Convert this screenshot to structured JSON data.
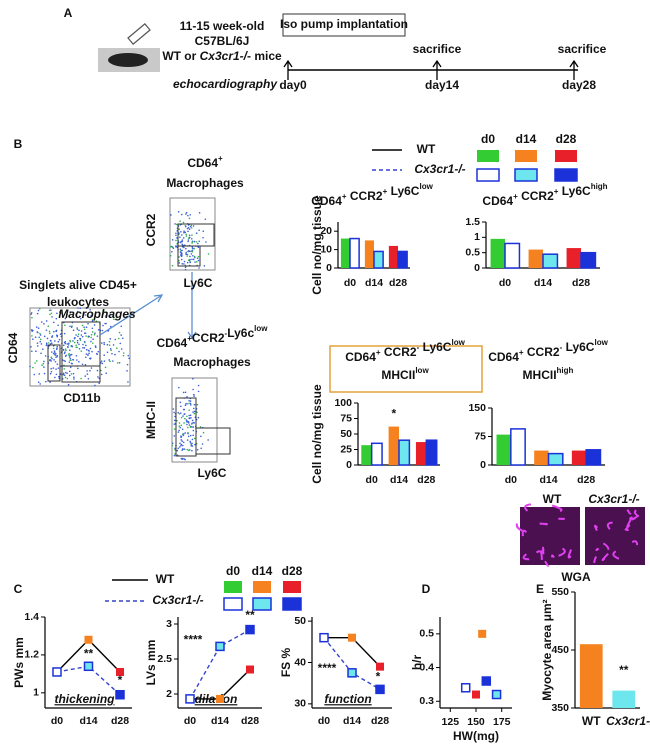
{
  "panel_labels": [
    "A",
    "B",
    "C",
    "D",
    "E"
  ],
  "timeline": {
    "mice": [
      "11-15 week-old",
      "C57BL/6J"
    ],
    "genotype_line": [
      "WT or ",
      "Cx3cr1-/-",
      " mice"
    ],
    "echo": "echocardiography",
    "pump": "Iso pump implantation",
    "sacrifice": [
      "sacrifice",
      "sacrifice"
    ],
    "days": [
      "day0",
      "day14",
      "day28"
    ]
  },
  "legend": {
    "wt": "WT",
    "ko": "Cx3cr1-/-",
    "timepoints": [
      "d0",
      "d14",
      "d28"
    ],
    "wt_colors": [
      "#33cc33",
      "#f5821f",
      "#e8202a"
    ],
    "ko_colors": [
      "#ffffff",
      "#6ee6ee",
      "#1a32d8"
    ],
    "ko_stroke": "#1a32d8",
    "wt_line": "#000000",
    "ko_line": "#3344cc"
  },
  "gating": {
    "leukocytes": [
      [
        [
          "Singlets alive CD45+"
        ]
      ],
      [
        [
          "leukocytes"
        ]
      ]
    ],
    "macrophages": [
      [
        [
          "CD64",
          "+"
        ]
      ],
      [
        [
          "Macrophages"
        ]
      ]
    ],
    "ly6c_low": [
      [
        [
          "CD64",
          "+"
        ],
        [
          "CCR2",
          "-"
        ],
        [
          "Ly6c",
          "low"
        ]
      ],
      [
        [
          "Macrophages"
        ]
      ]
    ],
    "gate_label": "Macrophages",
    "axes": [
      "CD64",
      "CD11b",
      "CCR2",
      "Ly6C",
      "MHC-II",
      "Ly6C"
    ]
  },
  "panel_e": {
    "images": [
      "WT",
      "Cx3cr1-/-"
    ],
    "stain": "WGA"
  },
  "chart_data": [
    {
      "type": "grouped_bar",
      "title": [
        [
          [
            "CD64",
            "+"
          ],
          [
            " CCR2",
            "+"
          ],
          [
            " Ly6C",
            "low"
          ]
        ]
      ],
      "ylabel": "Cell no/mg tissue",
      "categories": [
        "d0",
        "d14",
        "d28"
      ],
      "series": [
        {
          "values": [
            16,
            15,
            12
          ]
        },
        {
          "values": [
            16,
            9,
            9
          ]
        }
      ],
      "ylim": [
        0,
        25
      ],
      "yticks": [
        0,
        10,
        20
      ],
      "annotations": []
    },
    {
      "type": "grouped_bar",
      "title": [
        [
          [
            "CD64",
            "+"
          ],
          [
            " CCR2",
            "+"
          ],
          [
            " Ly6C",
            "high"
          ]
        ]
      ],
      "categories": [
        "d0",
        "d14",
        "d28"
      ],
      "series": [
        {
          "values": [
            0.95,
            0.6,
            0.65
          ]
        },
        {
          "values": [
            0.8,
            0.45,
            0.5
          ]
        }
      ],
      "ylim": [
        0,
        1.5
      ],
      "yticks": [
        0,
        0.5,
        1,
        1.5
      ],
      "annotations": []
    },
    {
      "type": "grouped_bar",
      "title": [
        [
          [
            "CD64",
            "+"
          ],
          [
            " CCR2",
            "-"
          ],
          [
            " Ly6C",
            "low"
          ]
        ],
        [
          [
            "MHCII",
            "low"
          ]
        ]
      ],
      "ylabel": "Cell no/mg tissue",
      "categories": [
        "d0",
        "d14",
        "d28"
      ],
      "series": [
        {
          "values": [
            32,
            62,
            37
          ]
        },
        {
          "values": [
            35,
            40,
            40
          ]
        }
      ],
      "ylim": [
        0,
        100
      ],
      "yticks": [
        0,
        25,
        50,
        75,
        100
      ],
      "annotations": [
        "*"
      ]
    },
    {
      "type": "grouped_bar",
      "title": [
        [
          [
            "CD64",
            "+"
          ],
          [
            " CCR2",
            "-"
          ],
          [
            " Ly6C",
            "low"
          ]
        ],
        [
          [
            "MHCII",
            "high"
          ]
        ]
      ],
      "categories": [
        "d0",
        "d14",
        "d28"
      ],
      "series": [
        {
          "values": [
            80,
            38,
            38
          ]
        },
        {
          "values": [
            95,
            30,
            40
          ]
        }
      ],
      "ylim": [
        0,
        150
      ],
      "yticks": [
        0,
        75,
        150
      ],
      "annotations": []
    },
    {
      "type": "line",
      "ylabel": "PWs mm",
      "caption": "thickening",
      "categories": [
        "d0",
        "d14",
        "d28"
      ],
      "series": [
        {
          "values": [
            1.11,
            1.28,
            1.11
          ]
        },
        {
          "values": [
            1.11,
            1.14,
            0.99
          ]
        }
      ],
      "ylim": [
        0.92,
        1.4
      ],
      "yticks": [
        1,
        1.2,
        1.4
      ],
      "annotations": [
        "**",
        "*"
      ]
    },
    {
      "type": "line",
      "ylabel": "LVs mm",
      "caption": "dilation",
      "categories": [
        "d0",
        "d14",
        "d28"
      ],
      "series": [
        {
          "values": [
            1.93,
            1.93,
            2.35
          ]
        },
        {
          "values": [
            1.93,
            2.68,
            2.92
          ]
        }
      ],
      "ylim": [
        1.8,
        3.1
      ],
      "yticks": [
        2,
        2.5,
        3
      ],
      "annotations": [
        "****",
        "**"
      ]
    },
    {
      "type": "line",
      "ylabel": "FS %",
      "caption": "function",
      "categories": [
        "d0",
        "d14",
        "d28"
      ],
      "series": [
        {
          "values": [
            46,
            46,
            39
          ]
        },
        {
          "values": [
            46,
            37.5,
            33.5
          ]
        }
      ],
      "ylim": [
        29,
        51
      ],
      "yticks": [
        30,
        40,
        50
      ],
      "annotations": [
        "****",
        "*"
      ]
    },
    {
      "type": "scatter",
      "xlabel": "HW(mg)",
      "ylabel": "h/r",
      "series": [
        {
          "x": [
            140,
            156,
            150
          ],
          "y": [
            0.34,
            0.5,
            0.32
          ]
        },
        {
          "x": [
            140,
            170,
            160
          ],
          "y": [
            0.34,
            0.32,
            0.36
          ]
        }
      ],
      "xlim": [
        115,
        185
      ],
      "xticks": [
        125,
        150,
        175
      ],
      "ylim": [
        0.28,
        0.55
      ],
      "yticks": [
        0.3,
        0.4,
        0.5
      ]
    },
    {
      "type": "bar",
      "ylabel": "Myocyte area μm²",
      "categories": [
        "WT",
        "Cx3cr1-/-"
      ],
      "values": [
        460,
        380
      ],
      "colors": [
        "#f5821f",
        "#6ee6ee"
      ],
      "ylim": [
        350,
        550
      ],
      "yticks": [
        350,
        450,
        550
      ],
      "annotations": [
        "**"
      ]
    }
  ]
}
